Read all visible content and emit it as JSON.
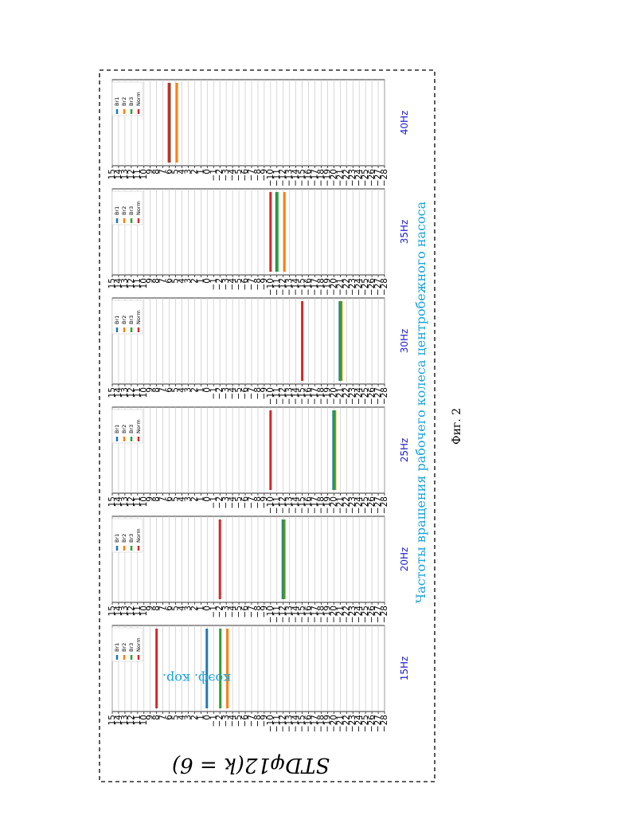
{
  "figure": {
    "title": "STDφ12(k = 6)",
    "ylabel": "коэф. кор.",
    "xlabel": "Частоты вращения рабочего колеса центробежного насоса",
    "caption": "Фиг. 2",
    "colors": {
      "Br1": "#1f77b4",
      "Br2": "#ff7f0e",
      "Br3": "#2ca02c",
      "Norm": "#d62728"
    }
  },
  "chart_data": {
    "type": "bar",
    "orientation": "rotated 90° clockwise (page printed sideways)",
    "value_axis": {
      "min": -28,
      "max": 15,
      "step": 1
    },
    "grid": true,
    "legend": {
      "placement": "top-left",
      "entries": [
        "Br1",
        "Br2",
        "Br3",
        "Norm"
      ]
    },
    "series_names": [
      "Br1",
      "Br2",
      "Br3",
      "Norm"
    ],
    "panels": [
      {
        "title": "15Hz",
        "values": {
          "Br1": 0,
          "Br2": -3,
          "Br3": -2,
          "Norm": 8
        }
      },
      {
        "title": "20Hz",
        "values": {
          "Br1": -12,
          "Br2": -12,
          "Br3": -12,
          "Norm": -2
        }
      },
      {
        "title": "25Hz",
        "values": {
          "Br1": -20,
          "Br2": -20,
          "Br3": -20,
          "Norm": -10
        }
      },
      {
        "title": "30Hz",
        "values": {
          "Br1": -21,
          "Br2": -21,
          "Br3": -21,
          "Norm": -15
        }
      },
      {
        "title": "35Hz",
        "values": {
          "Br1": -11,
          "Br2": -12,
          "Br3": -11,
          "Norm": -10
        }
      },
      {
        "title": "40Hz",
        "values": {
          "Br1": 6,
          "Br2": 5,
          "Br3": 6,
          "Norm": 6
        }
      }
    ]
  }
}
